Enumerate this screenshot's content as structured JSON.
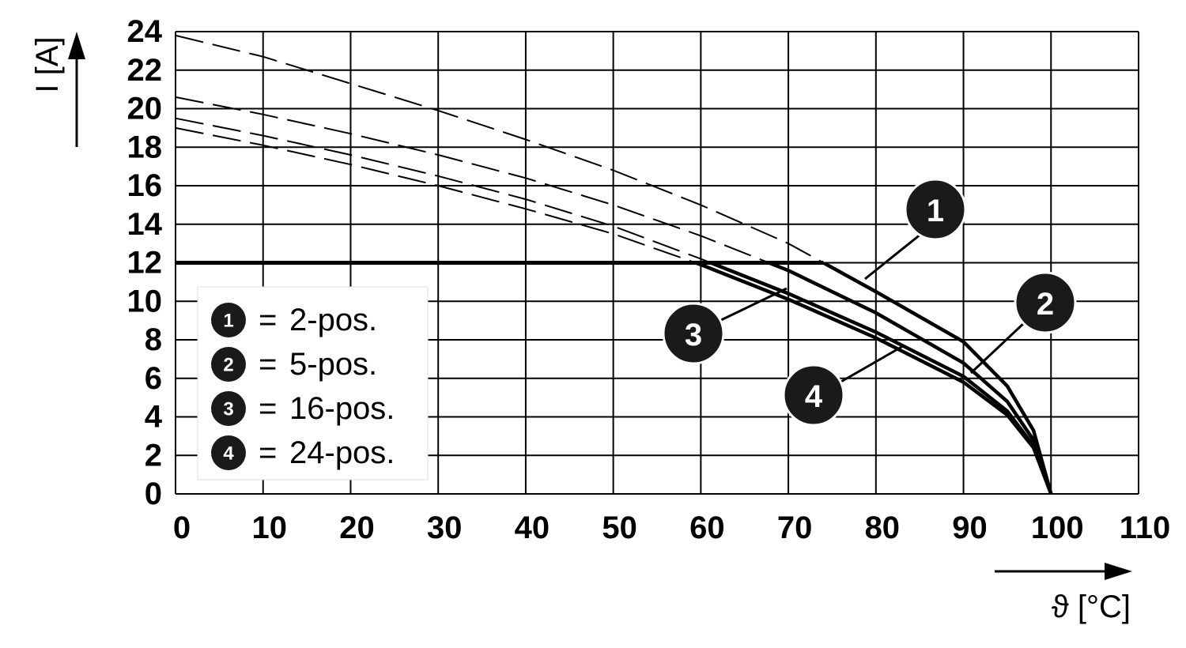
{
  "chart_data": {
    "type": "line",
    "xlabel": "ϑ [°C]",
    "ylabel": "I [A]",
    "xlim": [
      0,
      110
    ],
    "xticks": [
      0,
      10,
      20,
      30,
      40,
      50,
      60,
      70,
      80,
      90,
      100,
      110
    ],
    "ylim": [
      0,
      24
    ],
    "yticks": [
      0,
      2,
      4,
      6,
      8,
      10,
      12,
      14,
      16,
      18,
      20,
      22,
      24
    ],
    "grid": true,
    "legend_separator": "=",
    "current_limit": 12,
    "x": [
      0,
      10,
      20,
      30,
      40,
      50,
      60,
      70,
      80,
      90,
      95,
      98,
      100
    ],
    "series": [
      {
        "name": "2-pos.",
        "label": "1",
        "color": "#000000",
        "values": [
          23.8,
          22.7,
          21.3,
          19.9,
          18.4,
          16.8,
          15.0,
          13.0,
          10.5,
          7.9,
          5.6,
          3.3,
          0
        ]
      },
      {
        "name": "5-pos.",
        "label": "2",
        "color": "#000000",
        "values": [
          20.6,
          19.7,
          18.7,
          17.6,
          16.4,
          15.0,
          13.4,
          11.6,
          9.4,
          6.8,
          4.8,
          2.8,
          0
        ]
      },
      {
        "name": "16-pos.",
        "label": "3",
        "color": "#000000",
        "values": [
          19.5,
          18.6,
          17.6,
          16.5,
          15.3,
          13.9,
          12.2,
          10.4,
          8.4,
          6.1,
          4.3,
          2.5,
          0
        ]
      },
      {
        "name": "24-pos.",
        "label": "4",
        "color": "#000000",
        "values": [
          19.0,
          18.1,
          17.1,
          16.0,
          14.8,
          13.5,
          11.9,
          10.1,
          8.1,
          5.8,
          4.1,
          2.4,
          0
        ]
      }
    ]
  }
}
